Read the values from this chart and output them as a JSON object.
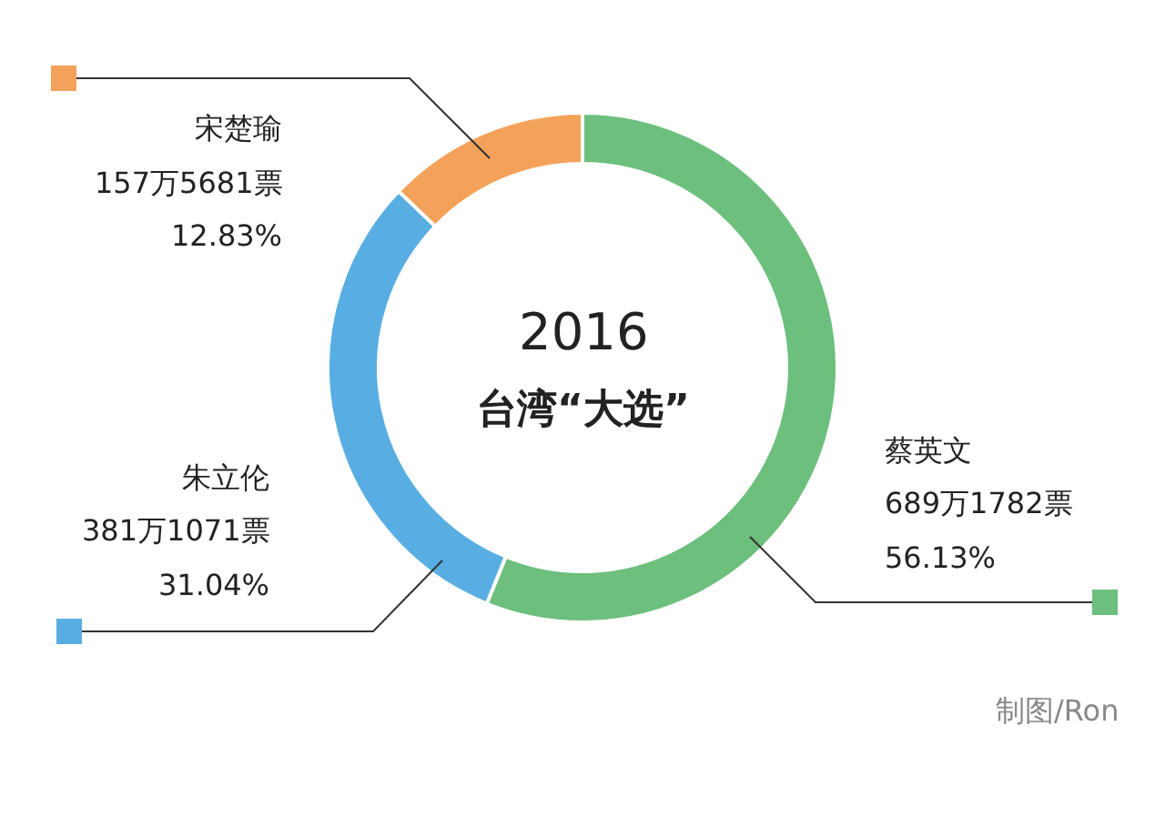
{
  "chart_data": {
    "type": "donut",
    "title": "2016",
    "subtitle": "台湾“大选”",
    "categories": [
      "蔡英文",
      "朱立伦",
      "宋楚瑜"
    ],
    "values": [
      56.13,
      31.04,
      12.83
    ],
    "value_labels": [
      "689万1782票\n56.13%",
      "381万1071票\n31.04%",
      "157万5681票\n12.83%"
    ],
    "colors": [
      "#6cbf7c",
      "#58aee2",
      "#f4a25a"
    ],
    "annotations": [
      "制图/Ron"
    ]
  }
}
